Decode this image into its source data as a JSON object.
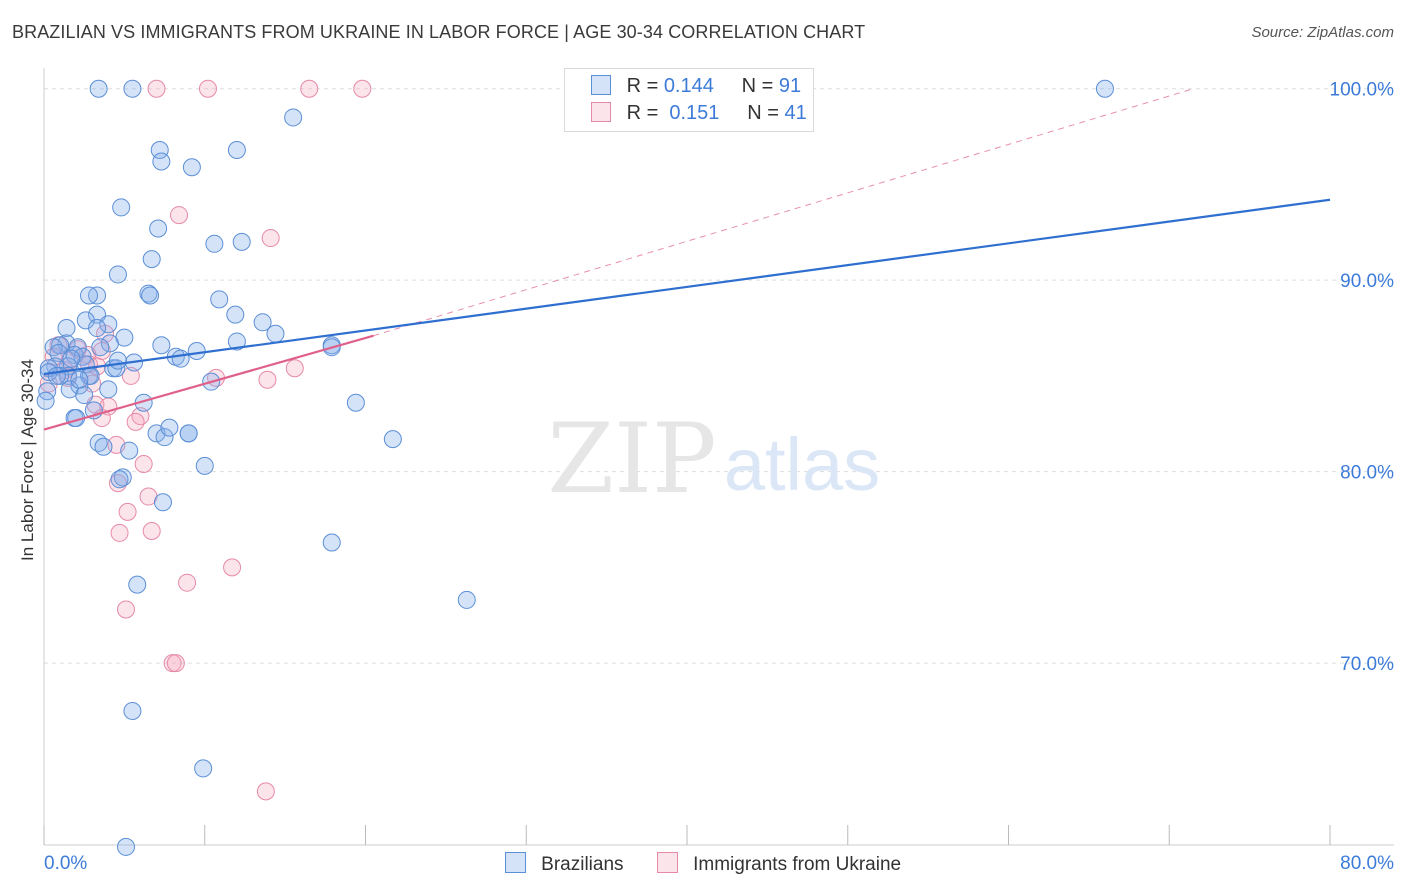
{
  "header": {
    "title": "BRAZILIAN VS IMMIGRANTS FROM UKRAINE IN LABOR FORCE | AGE 30-34 CORRELATION CHART",
    "source": "Source: ZipAtlas.com"
  },
  "legend_box": {
    "rows": [
      {
        "r_label": "R =",
        "r_value": "0.144",
        "n_label": "N =",
        "n_value": "91"
      },
      {
        "r_label": "R =",
        "r_value": "0.151",
        "n_label": "N =",
        "n_value": "41"
      }
    ]
  },
  "watermark": {
    "zip": "ZIP",
    "atlas": "atlas"
  },
  "colors": {
    "blue_fill": "rgba(135,175,235,0.35)",
    "blue_stroke": "#5b8fd6",
    "blue_line": "#2f6fcf",
    "pink_fill": "rgba(245,165,190,0.30)",
    "pink_stroke": "#e68aa8",
    "pink_line": "#e0608a",
    "axis_text": "#3d7bd9",
    "grid": "#dddddd"
  },
  "chart_data": {
    "type": "scatter",
    "title": "BRAZILIAN VS IMMIGRANTS FROM UKRAINE IN LABOR FORCE | AGE 30-34 CORRELATION CHART",
    "xlabel": "",
    "ylabel": "In Labor Force | Age 30-34",
    "xlim": [
      0,
      80
    ],
    "ylim": [
      60.5,
      101.5
    ],
    "x_tick_labels": [
      "0.0%",
      "80.0%"
    ],
    "y_ticks": [
      70,
      80,
      90,
      100
    ],
    "y_tick_labels": [
      "70.0%",
      "80.0%",
      "90.0%",
      "100.0%"
    ],
    "series": [
      {
        "name": "Brazilians",
        "color": "blue",
        "r": "0.144",
        "n": "91",
        "trend": {
          "x0": 0,
          "y0": 85.1,
          "x1": 80,
          "y1": 94.2
        },
        "points": [
          [
            3.4,
            100
          ],
          [
            5.5,
            100
          ],
          [
            66,
            100
          ],
          [
            15.5,
            98.5
          ],
          [
            7.2,
            96.8
          ],
          [
            12,
            96.8
          ],
          [
            7.3,
            96.2
          ],
          [
            9.2,
            95.9
          ],
          [
            4.8,
            93.8
          ],
          [
            7.1,
            92.7
          ],
          [
            10.6,
            91.9
          ],
          [
            12.3,
            92
          ],
          [
            6.7,
            91.1
          ],
          [
            4.6,
            90.3
          ],
          [
            6.5,
            89.3
          ],
          [
            6.6,
            89.2
          ],
          [
            3.3,
            89.2
          ],
          [
            2.8,
            89.2
          ],
          [
            10.9,
            89
          ],
          [
            3.3,
            88.2
          ],
          [
            2.6,
            87.9
          ],
          [
            11.9,
            88.2
          ],
          [
            13.6,
            87.8
          ],
          [
            4,
            87.7
          ],
          [
            3.3,
            87.5
          ],
          [
            14.4,
            87.2
          ],
          [
            1.4,
            87.5
          ],
          [
            5,
            87
          ],
          [
            1.4,
            86.7
          ],
          [
            7.3,
            86.6
          ],
          [
            4.1,
            86.7
          ],
          [
            12,
            86.8
          ],
          [
            1,
            86.6
          ],
          [
            0.6,
            86.5
          ],
          [
            2.1,
            86.5
          ],
          [
            0.9,
            86.2
          ],
          [
            1.9,
            86.1
          ],
          [
            2.4,
            86
          ],
          [
            8.2,
            86
          ],
          [
            9.5,
            86.3
          ],
          [
            2.6,
            85.6
          ],
          [
            5.6,
            85.7
          ],
          [
            1.5,
            85.5
          ],
          [
            0.7,
            85.5
          ],
          [
            0.3,
            85.4
          ],
          [
            4.3,
            85.4
          ],
          [
            4.5,
            85.4
          ],
          [
            1.5,
            85
          ],
          [
            2.8,
            85
          ],
          [
            2.9,
            85
          ],
          [
            1,
            85
          ],
          [
            0.3,
            85.2
          ],
          [
            10.4,
            84.7
          ],
          [
            2.2,
            84.5
          ],
          [
            4,
            84.3
          ],
          [
            1.6,
            84.3
          ],
          [
            0.2,
            84.2
          ],
          [
            2.5,
            84
          ],
          [
            0.1,
            83.7
          ],
          [
            6.2,
            83.6
          ],
          [
            19.4,
            83.6
          ],
          [
            3.1,
            83.2
          ],
          [
            1.9,
            82.8
          ],
          [
            2,
            82.8
          ],
          [
            7,
            82
          ],
          [
            9,
            82
          ],
          [
            9,
            82
          ],
          [
            17.9,
            86.6
          ],
          [
            7.5,
            81.8
          ],
          [
            3.4,
            81.5
          ],
          [
            3.7,
            81.3
          ],
          [
            5.3,
            81.1
          ],
          [
            21.7,
            81.7
          ],
          [
            10,
            80.3
          ],
          [
            4.9,
            79.7
          ],
          [
            4.7,
            79.6
          ],
          [
            7.4,
            78.4
          ],
          [
            17.9,
            76.3
          ],
          [
            5.8,
            74.1
          ],
          [
            26.3,
            73.3
          ],
          [
            5.5,
            67.5
          ],
          [
            9.9,
            64.5
          ],
          [
            5.1,
            60.4
          ],
          [
            17.9,
            86.5
          ],
          [
            7.8,
            82.3
          ],
          [
            4.6,
            85.8
          ],
          [
            1.7,
            85.9
          ],
          [
            3.5,
            86.5
          ],
          [
            2.2,
            84.8
          ],
          [
            8.5,
            85.9
          ],
          [
            0.8,
            85
          ]
        ]
      },
      {
        "name": "Immigrants from Ukraine",
        "color": "pink",
        "r": "0.151",
        "n": "41",
        "trend": {
          "x0": 0,
          "y0": 82.2,
          "x1": 20.5,
          "y1": 87.1
        },
        "dashed_extension": {
          "x0": 20.5,
          "y0": 87.1,
          "x1": 71.5,
          "y1": 100
        },
        "points": [
          [
            7,
            100
          ],
          [
            10.2,
            100
          ],
          [
            16.5,
            100
          ],
          [
            19.8,
            100
          ],
          [
            8.4,
            93.4
          ],
          [
            14.1,
            92.2
          ],
          [
            3.8,
            87.2
          ],
          [
            3.6,
            86.3
          ],
          [
            2.7,
            86.1
          ],
          [
            0.9,
            86.6
          ],
          [
            0.6,
            86
          ],
          [
            2.8,
            85.6
          ],
          [
            1.3,
            85.3
          ],
          [
            3.3,
            85.5
          ],
          [
            10.7,
            84.9
          ],
          [
            13.9,
            84.8
          ],
          [
            15.6,
            85.4
          ],
          [
            5.4,
            85
          ],
          [
            1.5,
            84.9
          ],
          [
            0.3,
            84.6
          ],
          [
            3.2,
            83.5
          ],
          [
            4,
            83.4
          ],
          [
            6,
            82.9
          ],
          [
            3.6,
            82.8
          ],
          [
            5.7,
            82.6
          ],
          [
            4.5,
            81.4
          ],
          [
            6.2,
            80.4
          ],
          [
            6.5,
            78.7
          ],
          [
            5.2,
            77.9
          ],
          [
            4.6,
            79.4
          ],
          [
            6.7,
            76.9
          ],
          [
            4.7,
            76.8
          ],
          [
            11.7,
            75
          ],
          [
            8.9,
            74.2
          ],
          [
            5.1,
            72.8
          ],
          [
            8,
            70
          ],
          [
            8.2,
            70
          ],
          [
            13.8,
            63.3
          ],
          [
            1.6,
            85.8
          ],
          [
            2.1,
            86.4
          ],
          [
            3,
            84.6
          ]
        ]
      }
    ]
  },
  "bottom_legend": {
    "items": [
      {
        "label": "Brazilians"
      },
      {
        "label": "Immigrants from Ukraine"
      }
    ]
  }
}
